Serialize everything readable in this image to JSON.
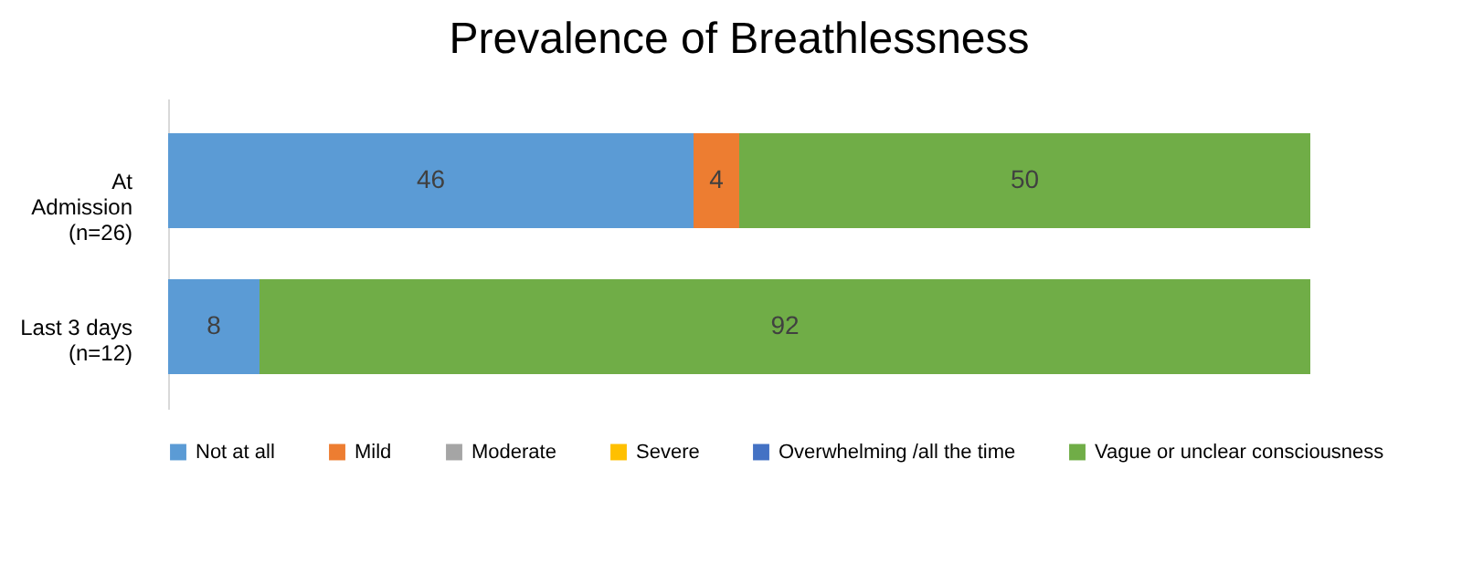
{
  "chart_data": {
    "type": "bar",
    "title": "Prevalence of Breathlessness",
    "orientation": "horizontal",
    "stacked": true,
    "data_labels": true,
    "legend": "bottom",
    "categories": [
      "At\nAdmission\n(n=26)",
      "Last 3 days\n(n=12)"
    ],
    "series": [
      {
        "name": "Not at all",
        "color": "#5b9bd5",
        "values": [
          46,
          8
        ]
      },
      {
        "name": "Mild",
        "color": "#ed7d31",
        "values": [
          4,
          null
        ]
      },
      {
        "name": "Moderate",
        "color": "#a5a5a5",
        "values": [
          null,
          null
        ]
      },
      {
        "name": "Severe",
        "color": "#ffc000",
        "values": [
          null,
          null
        ]
      },
      {
        "name": "Overwhelming /all the time",
        "color": "#4472c4",
        "values": [
          null,
          null
        ]
      },
      {
        "name": "Vague or unclear consciousness",
        "color": "#70ad47",
        "values": [
          50,
          92
        ]
      }
    ]
  }
}
